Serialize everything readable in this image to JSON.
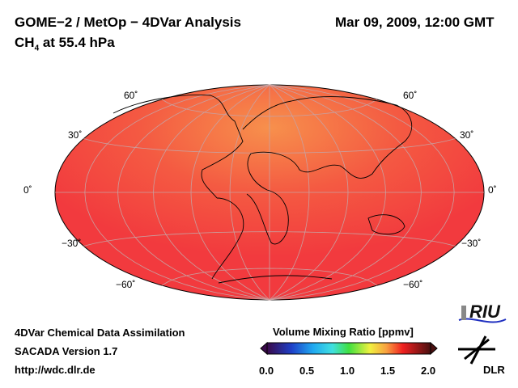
{
  "header": {
    "title": "GOME−2 / MetOp − 4DVar Analysis",
    "date": "Mar 09, 2009, 12:00 GMT",
    "species": "CH",
    "species_sub": "4",
    "level": " at 55.4 hPa"
  },
  "map": {
    "lat_labels_left": [
      "60˚",
      "30˚",
      "0˚",
      "−30˚",
      "−60˚"
    ],
    "lat_labels_right": [
      "60˚",
      "30˚",
      "0˚",
      "−30˚",
      "−60˚"
    ],
    "base_color": "#f23a3e",
    "high_color": "#f58a4a"
  },
  "footer": {
    "line1": "4DVar Chemical Data Assimilation",
    "line2": "SACADA Version 1.7",
    "line3": "http://wdc.dlr.de"
  },
  "colorbar": {
    "title": "Volume Mixing Ratio [ppmv]",
    "ticks": [
      "0.0",
      "0.5",
      "1.0",
      "1.5",
      "2.0"
    ],
    "min": 0,
    "max": 2
  },
  "logos": {
    "riu": "RIU",
    "dlr": "DLR"
  }
}
